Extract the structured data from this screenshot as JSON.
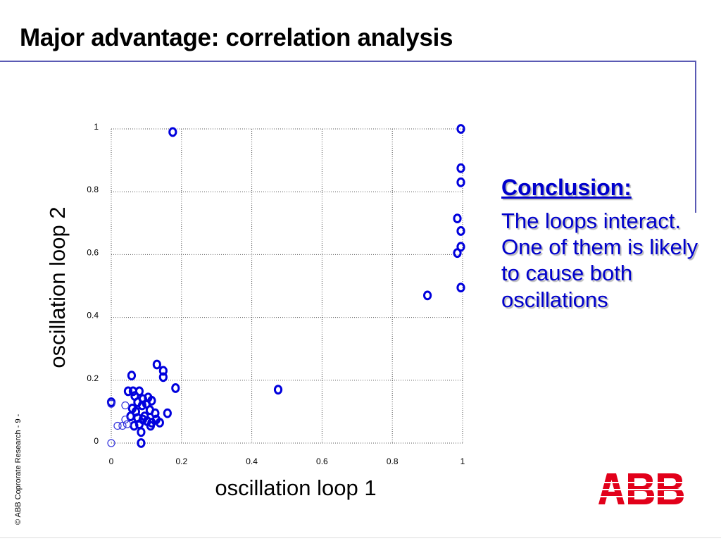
{
  "slide": {
    "title": "Major advantage: correlation analysis",
    "footer": "© ABB Coprorate Research  - 9 -",
    "logo_text": "ABB",
    "accent_color": "#0000cc",
    "rule_color": "#5a5ab4",
    "logo_color": "#e2001a"
  },
  "conclusion": {
    "heading": "Conclusion:",
    "body": "The loops interact. One of them is likely to cause both oscillations"
  },
  "chart_data": {
    "type": "scatter",
    "title": "",
    "xlabel": "oscillation loop 1",
    "ylabel": "oscillation loop 2",
    "xlim": [
      0,
      1
    ],
    "ylim": [
      0,
      1
    ],
    "xticks": [
      0,
      0.2,
      0.4,
      0.6,
      0.8,
      1
    ],
    "yticks": [
      0,
      0.2,
      0.4,
      0.6,
      0.8,
      1
    ],
    "xtick_labels": [
      "0",
      "0.2",
      "0.4",
      "0.6",
      "0.8",
      "1"
    ],
    "ytick_labels": [
      "0",
      "0.2",
      "0.4",
      "0.6",
      "0.8",
      "1"
    ],
    "grid": true,
    "marker_color": "#0000dd",
    "series": [
      {
        "style": "bold",
        "points": [
          [
            0.175,
            0.99
          ],
          [
            0.995,
            1.0
          ],
          [
            0.995,
            0.875
          ],
          [
            0.995,
            0.83
          ],
          [
            0.985,
            0.715
          ],
          [
            0.995,
            0.675
          ],
          [
            0.995,
            0.625
          ],
          [
            0.985,
            0.605
          ],
          [
            0.995,
            0.495
          ],
          [
            0.9,
            0.47
          ],
          [
            0.475,
            0.17
          ],
          [
            0.183,
            0.175
          ],
          [
            0.13,
            0.25
          ],
          [
            0.148,
            0.23
          ],
          [
            0.148,
            0.21
          ],
          [
            0.058,
            0.215
          ],
          [
            0.048,
            0.165
          ],
          [
            0.062,
            0.165
          ],
          [
            0.08,
            0.165
          ],
          [
            0.067,
            0.15
          ],
          [
            0.09,
            0.14
          ],
          [
            0.105,
            0.145
          ],
          [
            0.115,
            0.135
          ],
          [
            0.075,
            0.13
          ],
          [
            0.088,
            0.12
          ],
          [
            0.1,
            0.125
          ],
          [
            0.06,
            0.11
          ],
          [
            0.07,
            0.1
          ],
          [
            0.11,
            0.105
          ],
          [
            0.125,
            0.095
          ],
          [
            0.16,
            0.095
          ],
          [
            0.095,
            0.085
          ],
          [
            0.055,
            0.085
          ],
          [
            0.075,
            0.08
          ],
          [
            0.09,
            0.075
          ],
          [
            0.102,
            0.07
          ],
          [
            0.115,
            0.065
          ],
          [
            0.128,
            0.075
          ],
          [
            0.138,
            0.065
          ],
          [
            0.112,
            0.055
          ],
          [
            0.08,
            0.06
          ],
          [
            0.065,
            0.055
          ],
          [
            0.085,
            0.035
          ],
          [
            0.0,
            0.13
          ],
          [
            0.085,
            0.0
          ]
        ]
      },
      {
        "style": "thin",
        "points": [
          [
            0.0,
            0.125
          ],
          [
            0.04,
            0.12
          ],
          [
            0.018,
            0.055
          ],
          [
            0.032,
            0.055
          ],
          [
            0.04,
            0.075
          ],
          [
            0.045,
            0.06
          ],
          [
            0.0,
            0.0
          ]
        ]
      }
    ]
  }
}
